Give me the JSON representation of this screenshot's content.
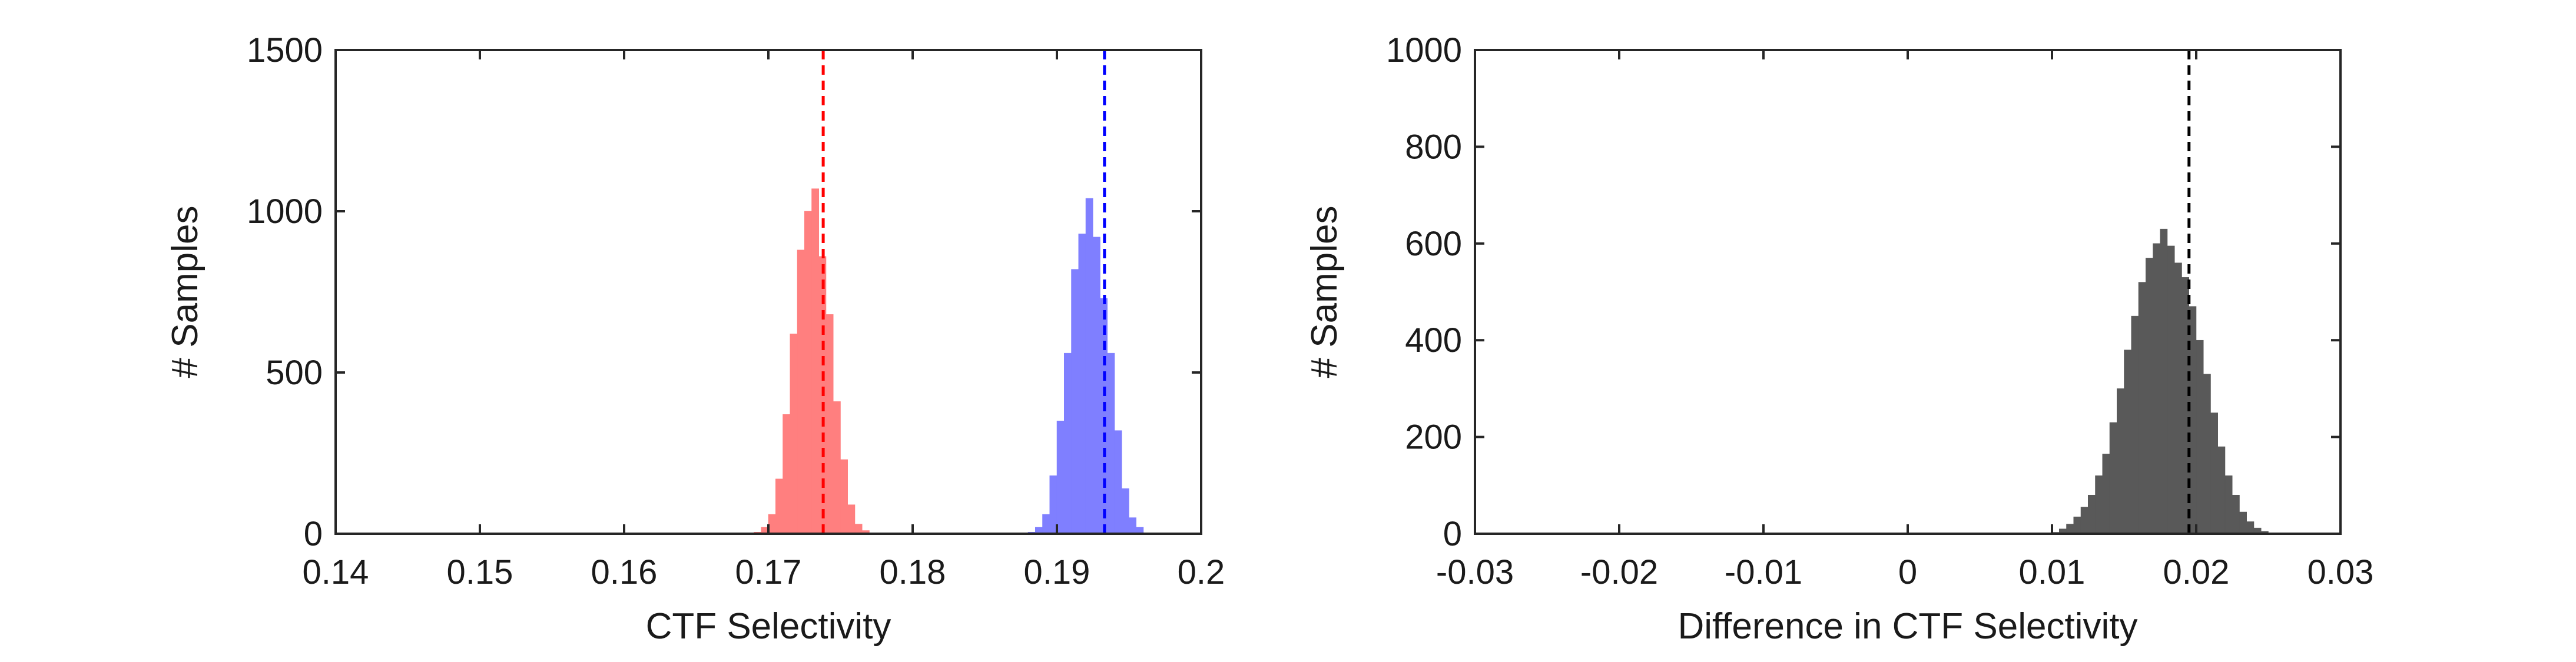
{
  "chart_data": [
    {
      "type": "histogram",
      "title": "",
      "xlabel": "CTF Selectivity",
      "ylabel": "# Samples",
      "xlim": [
        0.14,
        0.2
      ],
      "ylim": [
        0,
        1500
      ],
      "xticks": [
        "0.14",
        "0.15",
        "0.16",
        "0.17",
        "0.18",
        "0.19",
        "0.2"
      ],
      "yticks": [
        "0",
        "500",
        "1000",
        "1500"
      ],
      "grid": false,
      "legend": "none",
      "series": [
        {
          "color": "#ff7f7f",
          "mean": 0.1738,
          "line_color": "#ff0000",
          "bins_start": 0.169,
          "bin_width": 0.0005,
          "counts": [
            5,
            20,
            60,
            170,
            370,
            620,
            880,
            1000,
            1070,
            860,
            680,
            410,
            230,
            90,
            30,
            10
          ]
        },
        {
          "color": "#7f7fff",
          "mean": 0.1933,
          "line_color": "#0000ff",
          "bins_start": 0.188,
          "bin_width": 0.0005,
          "counts": [
            5,
            20,
            60,
            180,
            350,
            560,
            820,
            930,
            1040,
            920,
            730,
            560,
            320,
            140,
            50,
            20
          ]
        }
      ]
    },
    {
      "type": "histogram",
      "title": "",
      "xlabel": "Difference in CTF Selectivity",
      "ylabel": "# Samples",
      "xlim": [
        -0.03,
        0.03
      ],
      "ylim": [
        0,
        1000
      ],
      "xticks": [
        "-0.03",
        "-0.02",
        "-0.01",
        "0",
        "0.01",
        "0.02",
        "0.03"
      ],
      "yticks": [
        "0",
        "200",
        "400",
        "600",
        "800",
        "1000"
      ],
      "grid": false,
      "legend": "none",
      "series": [
        {
          "color": "#595959",
          "mean": 0.0195,
          "line_color": "#000000",
          "bins_start": 0.01,
          "bin_width": 0.0005,
          "counts": [
            3,
            10,
            20,
            35,
            55,
            80,
            120,
            165,
            230,
            300,
            380,
            450,
            520,
            570,
            600,
            630,
            595,
            560,
            530,
            470,
            400,
            330,
            250,
            180,
            120,
            80,
            45,
            25,
            12,
            5,
            2
          ]
        }
      ]
    }
  ]
}
